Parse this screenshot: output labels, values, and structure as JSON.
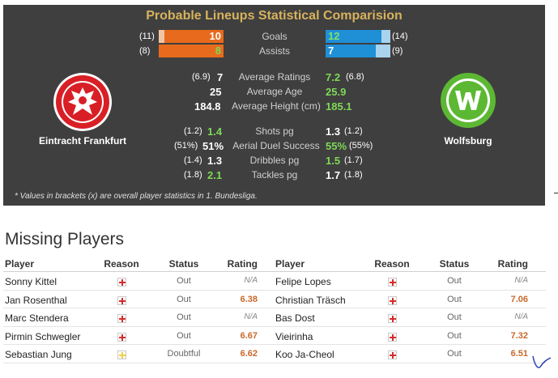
{
  "comparison": {
    "title": "Probable Lineups Statistical Comparision",
    "home_team": "Eintracht Frankfurt",
    "away_team": "Wolfsburg",
    "goals": {
      "label": "Goals",
      "home": "10",
      "home_paren": "(11)",
      "away": "12",
      "away_paren": "(14)",
      "home_fill": 0.91,
      "away_fill": 0.86
    },
    "assists": {
      "label": "Assists",
      "home": "8",
      "home_paren": "(8)",
      "away": "7",
      "away_paren": "(9)",
      "home_fill": 1.0,
      "away_fill": 0.78
    },
    "stats_a": [
      {
        "label": "Average Ratings",
        "home_paren": "(6.9)",
        "home": "7",
        "away": "7.2",
        "away_paren": "(6.8)",
        "home_color": "w",
        "away_color": "g"
      },
      {
        "label": "Average Age",
        "home_paren": "",
        "home": "25",
        "away": "25.9",
        "away_paren": "",
        "home_color": "w",
        "away_color": "g"
      },
      {
        "label": "Average Height (cm)",
        "home_paren": "",
        "home": "184.8",
        "away": "185.1",
        "away_paren": "",
        "home_color": "w",
        "away_color": "g"
      }
    ],
    "stats_b": [
      {
        "label": "Shots pg",
        "home_paren": "(1.2)",
        "home": "1.4",
        "away": "1.3",
        "away_paren": "(1.2)",
        "home_color": "g",
        "away_color": "w"
      },
      {
        "label": "Aerial Duel Success",
        "home_paren": "(51%)",
        "home": "51%",
        "away": "55%",
        "away_paren": "(55%)",
        "home_color": "w",
        "away_color": "g"
      },
      {
        "label": "Dribbles pg",
        "home_paren": "(1.4)",
        "home": "1.3",
        "away": "1.5",
        "away_paren": "(1.7)",
        "home_color": "w",
        "away_color": "g"
      },
      {
        "label": "Tackles pg",
        "home_paren": "(1.8)",
        "home": "2.1",
        "away": "1.7",
        "away_paren": "(1.8)",
        "home_color": "g",
        "away_color": "w"
      }
    ],
    "footnote": "* Values in brackets (x) are overall player statistics in 1. Bundesliga."
  },
  "missing": {
    "title": "Missing Players",
    "headers": {
      "player": "Player",
      "reason": "Reason",
      "status": "Status",
      "rating": "Rating"
    },
    "colors": {
      "injury": "#d62b2b",
      "doubtful": "#f0d040"
    },
    "home": [
      {
        "player": "Sonny Kittel",
        "reason": "injury",
        "status": "Out",
        "rating": "N/A"
      },
      {
        "player": "Jan Rosenthal",
        "reason": "injury",
        "status": "Out",
        "rating": "6.38"
      },
      {
        "player": "Marc Stendera",
        "reason": "injury",
        "status": "Out",
        "rating": "N/A"
      },
      {
        "player": "Pirmin Schwegler",
        "reason": "injury",
        "status": "Out",
        "rating": "6.67"
      },
      {
        "player": "Sebastian Jung",
        "reason": "doubtful",
        "status": "Doubtful",
        "rating": "6.62"
      }
    ],
    "away": [
      {
        "player": "Felipe Lopes",
        "reason": "injury",
        "status": "Out",
        "rating": "N/A"
      },
      {
        "player": "Christian Träsch",
        "reason": "injury",
        "status": "Out",
        "rating": "7.06"
      },
      {
        "player": "Bas Dost",
        "reason": "injury",
        "status": "Out",
        "rating": "N/A"
      },
      {
        "player": "Vieirinha",
        "reason": "injury",
        "status": "Out",
        "rating": "7.32"
      },
      {
        "player": "Koo Ja-Cheol",
        "reason": "injury",
        "status": "Out",
        "rating": "6.51"
      }
    ]
  }
}
